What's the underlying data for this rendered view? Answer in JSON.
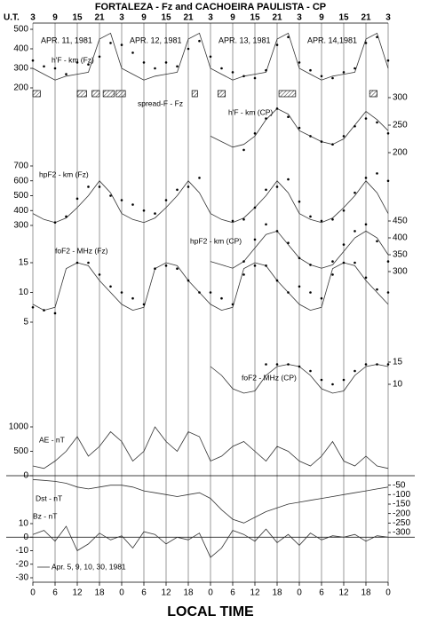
{
  "figure": {
    "title": "FORTALEZA - Fz and CACHOEIRA PAULISTA - CP",
    "x2label": "U.T.",
    "xlabel": "LOCAL TIME",
    "dates": [
      "APR. 11, 1981",
      "APR. 12, 1981",
      "APR. 13, 1981",
      "APR. 14,1981"
    ],
    "xlim": [
      0,
      96
    ],
    "xticks": [
      0,
      6,
      12,
      18,
      {
        "value": 24,
        "label": "0"
      },
      {
        "value": 30,
        "label": "6"
      },
      {
        "value": 36,
        "label": "12"
      },
      {
        "value": 42,
        "label": "18"
      },
      {
        "value": 48,
        "label": "0"
      },
      {
        "value": 54,
        "label": "6"
      },
      {
        "value": 60,
        "label": "12"
      },
      {
        "value": 66,
        "label": "18"
      },
      {
        "value": 72,
        "label": "0"
      },
      {
        "value": 78,
        "label": "6"
      },
      {
        "value": 84,
        "label": "12"
      },
      {
        "value": 90,
        "label": "18"
      },
      {
        "value": 96,
        "label": "0"
      }
    ],
    "x2ticks": [
      {
        "value": 0,
        "label": "3"
      },
      {
        "value": 6,
        "label": "9"
      },
      {
        "value": 12,
        "label": "15"
      },
      {
        "value": 18,
        "label": "21"
      },
      {
        "value": 24,
        "label": "3"
      },
      {
        "value": 30,
        "label": "9"
      },
      {
        "value": 36,
        "label": "15"
      },
      {
        "value": 42,
        "label": "21"
      },
      {
        "value": 48,
        "label": "3"
      },
      {
        "value": 54,
        "label": "9"
      },
      {
        "value": 60,
        "label": "15"
      },
      {
        "value": 66,
        "label": "21"
      },
      {
        "value": 72,
        "label": "3"
      },
      {
        "value": 78,
        "label": "9"
      },
      {
        "value": 84,
        "label": "15"
      },
      {
        "value": 90,
        "label": "21"
      },
      {
        "value": 96,
        "label": "3"
      }
    ]
  },
  "chart_data": [
    {
      "type": "line",
      "label": "h'F - km (Fz)",
      "y_axis_side": "left",
      "ylim": [
        200,
        500
      ],
      "yticks": [
        200,
        300,
        400,
        500
      ],
      "x": [
        0,
        3,
        6,
        9,
        12,
        15,
        18,
        21,
        24,
        27,
        30,
        33,
        36,
        39,
        42,
        45,
        48,
        51,
        54,
        57,
        60,
        63,
        66,
        69,
        72,
        75,
        78,
        81,
        84,
        87,
        90,
        93,
        96
      ],
      "series": [
        {
          "style": "line",
          "color": "#333333",
          "values": [
            300,
            270,
            240,
            260,
            270,
            280,
            450,
            480,
            300,
            270,
            240,
            260,
            270,
            280,
            450,
            480,
            300,
            270,
            240,
            260,
            270,
            280,
            450,
            480,
            300,
            270,
            240,
            260,
            270,
            280,
            450,
            480,
            300
          ]
        },
        {
          "style": "dots",
          "color": "#000000",
          "values": [
            340,
            310,
            300,
            270,
            330,
            320,
            360,
            430,
            420,
            380,
            330,
            300,
            330,
            310,
            400,
            440,
            360,
            300,
            280,
            260,
            250,
            290,
            420,
            460,
            330,
            290,
            260,
            250,
            280,
            300,
            430,
            460,
            340
          ]
        }
      ]
    },
    {
      "type": "interval",
      "label": "spread-F - Fz",
      "intervals": [
        [
          0,
          2
        ],
        [
          12,
          14.5
        ],
        [
          16,
          18
        ],
        [
          19,
          22
        ],
        [
          22.5,
          25
        ],
        [
          43,
          44.5
        ],
        [
          50,
          52
        ],
        [
          66.5,
          71
        ],
        [
          91,
          93
        ]
      ],
      "color": "#000000"
    },
    {
      "type": "line",
      "label": "h'F - km (CP)",
      "y_axis_side": "right",
      "ylim": [
        200,
        300
      ],
      "yticks": [
        200,
        250,
        300
      ],
      "x": [
        48,
        51,
        54,
        57,
        60,
        63,
        66,
        69,
        72,
        75,
        78,
        81,
        84,
        87,
        90,
        93,
        96
      ],
      "series": [
        {
          "style": "line",
          "color": "#333333",
          "values": [
            230,
            220,
            210,
            215,
            230,
            260,
            280,
            270,
            240,
            230,
            220,
            215,
            225,
            250,
            275,
            260,
            240
          ]
        },
        {
          "style": "dots",
          "color": "#000000",
          "values": [
            null,
            null,
            null,
            205,
            235,
            262,
            280,
            265,
            245,
            230,
            220,
            215,
            230,
            248,
            262,
            255,
            235
          ]
        }
      ]
    },
    {
      "type": "line",
      "label": "hpF2 - km (Fz)",
      "y_axis_side": "left",
      "ylim": [
        300,
        700
      ],
      "yticks": [
        300,
        400,
        500,
        600,
        700
      ],
      "x": [
        0,
        3,
        6,
        9,
        12,
        15,
        18,
        21,
        24,
        27,
        30,
        33,
        36,
        39,
        42,
        45,
        48,
        51,
        54,
        57,
        60,
        63,
        66,
        69,
        72,
        75,
        78,
        81,
        84,
        87,
        90,
        93,
        96
      ],
      "series": [
        {
          "style": "line",
          "color": "#333333",
          "values": [
            380,
            340,
            320,
            350,
            420,
            500,
            600,
            520,
            380,
            340,
            320,
            350,
            420,
            500,
            600,
            520,
            380,
            340,
            320,
            350,
            420,
            500,
            600,
            520,
            380,
            340,
            320,
            350,
            420,
            500,
            600,
            520,
            380
          ]
        },
        {
          "style": "dots",
          "color": "#000000",
          "values": [
            null,
            null,
            320,
            360,
            480,
            560,
            560,
            500,
            470,
            440,
            400,
            380,
            470,
            540,
            560,
            620,
            null,
            null,
            330,
            340,
            420,
            540,
            560,
            610,
            460,
            360,
            330,
            340,
            400,
            520,
            620,
            650,
            600
          ]
        }
      ]
    },
    {
      "type": "line",
      "label": "hpF2 - km (CP)",
      "y_axis_side": "right",
      "ylim": [
        280,
        470
      ],
      "yticks": [
        300,
        350,
        400,
        450
      ],
      "x": [
        48,
        51,
        54,
        57,
        60,
        63,
        66,
        69,
        72,
        75,
        78,
        81,
        84,
        87,
        90,
        93,
        96
      ],
      "series": [
        {
          "style": "line",
          "color": "#333333",
          "values": [
            330,
            320,
            310,
            330,
            370,
            410,
            420,
            380,
            340,
            320,
            310,
            320,
            360,
            400,
            420,
            400,
            350
          ]
        },
        {
          "style": "dots",
          "color": "#000000",
          "values": [
            null,
            null,
            null,
            330,
            395,
            440,
            420,
            385,
            340,
            320,
            null,
            330,
            380,
            420,
            440,
            390,
            330
          ]
        }
      ]
    },
    {
      "type": "line",
      "label": "foF2 - MHz (Fz)",
      "y_axis_side": "left",
      "ylim": [
        4,
        16
      ],
      "yticks": [
        5,
        10,
        15
      ],
      "x": [
        0,
        3,
        6,
        9,
        12,
        15,
        18,
        21,
        24,
        27,
        30,
        33,
        36,
        39,
        42,
        45,
        48,
        51,
        54,
        57,
        60,
        63,
        66,
        69,
        72,
        75,
        78,
        81,
        84,
        87,
        90,
        93,
        96
      ],
      "series": [
        {
          "style": "line",
          "color": "#333333",
          "values": [
            8,
            7,
            7.5,
            14,
            15,
            14.5,
            12,
            10,
            8,
            7,
            7.5,
            14,
            15,
            14.5,
            12,
            10,
            8,
            7,
            7.5,
            14,
            15,
            14.5,
            12,
            10,
            8,
            7,
            7.5,
            14,
            15,
            14.5,
            12,
            10,
            8
          ]
        },
        {
          "style": "dots",
          "color": "#000000",
          "values": [
            7.5,
            7,
            6.5,
            null,
            15,
            15,
            13,
            11,
            10,
            9,
            8,
            14,
            14.5,
            14,
            12,
            10,
            10,
            9,
            8,
            13,
            14.5,
            14.5,
            12,
            10,
            11,
            10,
            9,
            13,
            15,
            15,
            12.5,
            10.5,
            10
          ]
        }
      ]
    },
    {
      "type": "line",
      "label": "foF2 - MHz (CP)",
      "y_axis_side": "right",
      "ylim": [
        7,
        17
      ],
      "yticks": [
        10,
        15
      ],
      "x": [
        48,
        51,
        54,
        57,
        60,
        63,
        66,
        69,
        72,
        75,
        78,
        81,
        84,
        87,
        90,
        93,
        96
      ],
      "series": [
        {
          "style": "line",
          "color": "#333333",
          "values": [
            14,
            12,
            9,
            8,
            8.5,
            12,
            14,
            14.5,
            14,
            12,
            9,
            8,
            8.5,
            12,
            14,
            14.5,
            14
          ]
        },
        {
          "style": "dots",
          "color": "#000000",
          "values": [
            null,
            null,
            null,
            null,
            null,
            14.5,
            14.5,
            14.5,
            14,
            13,
            11,
            10,
            11,
            13,
            14.5,
            14.5,
            14.5
          ]
        }
      ]
    },
    {
      "type": "line",
      "label": "AE - nT",
      "y_axis_side": "left",
      "ylim": [
        0,
        1200
      ],
      "yticks": [
        0,
        500,
        1000
      ],
      "zero_line": true,
      "x": [
        0,
        3,
        6,
        9,
        12,
        15,
        18,
        21,
        24,
        27,
        30,
        33,
        36,
        39,
        42,
        45,
        48,
        51,
        54,
        57,
        60,
        63,
        66,
        69,
        72,
        75,
        78,
        81,
        84,
        87,
        90,
        93,
        96
      ],
      "series": [
        {
          "style": "line",
          "color": "#333333",
          "values": [
            200,
            150,
            300,
            500,
            800,
            400,
            600,
            900,
            700,
            300,
            500,
            1000,
            700,
            500,
            900,
            800,
            300,
            400,
            600,
            700,
            500,
            300,
            600,
            500,
            300,
            200,
            400,
            700,
            300,
            200,
            400,
            200,
            150
          ]
        }
      ]
    },
    {
      "type": "line",
      "label": "Dst - nT",
      "y_axis_side": "right",
      "ylim": [
        -300,
        0
      ],
      "yticks": [
        -50,
        -100,
        -150,
        -200,
        -250,
        -300
      ],
      "x": [
        0,
        3,
        6,
        9,
        12,
        15,
        18,
        21,
        24,
        27,
        30,
        33,
        36,
        39,
        42,
        45,
        48,
        51,
        54,
        57,
        60,
        63,
        66,
        69,
        72,
        75,
        78,
        81,
        84,
        87,
        90,
        93,
        96
      ],
      "series": [
        {
          "style": "line",
          "color": "#333333",
          "values": [
            -20,
            -25,
            -30,
            -40,
            -60,
            -70,
            -60,
            -50,
            -50,
            -60,
            -80,
            -90,
            -100,
            -110,
            -100,
            -90,
            -120,
            -180,
            -230,
            -250,
            -220,
            -190,
            -170,
            -150,
            -140,
            -130,
            -120,
            -110,
            -100,
            -90,
            -80,
            -70,
            -60
          ]
        }
      ]
    },
    {
      "type": "line",
      "label": "Bz - nT",
      "annotation": "Apr. 5, 9, 10, 30, 1981",
      "y_axis_side": "left",
      "ylim": [
        -30,
        10
      ],
      "yticks": [
        10,
        0,
        -10,
        -20,
        -30
      ],
      "zero_line": true,
      "x": [
        0,
        3,
        6,
        9,
        12,
        15,
        18,
        21,
        24,
        27,
        30,
        33,
        36,
        39,
        42,
        45,
        48,
        51,
        54,
        57,
        60,
        63,
        66,
        69,
        72,
        75,
        78,
        81,
        84,
        87,
        90,
        93,
        96
      ],
      "series": [
        {
          "style": "line",
          "color": "#333333",
          "values": [
            2,
            5,
            -3,
            8,
            -10,
            -5,
            3,
            -2,
            1,
            -8,
            4,
            2,
            -5,
            0,
            -2,
            3,
            -15,
            -8,
            5,
            2,
            -3,
            6,
            -4,
            2,
            -6,
            3,
            -2,
            1,
            0,
            2,
            -3,
            1,
            0
          ]
        }
      ]
    }
  ]
}
